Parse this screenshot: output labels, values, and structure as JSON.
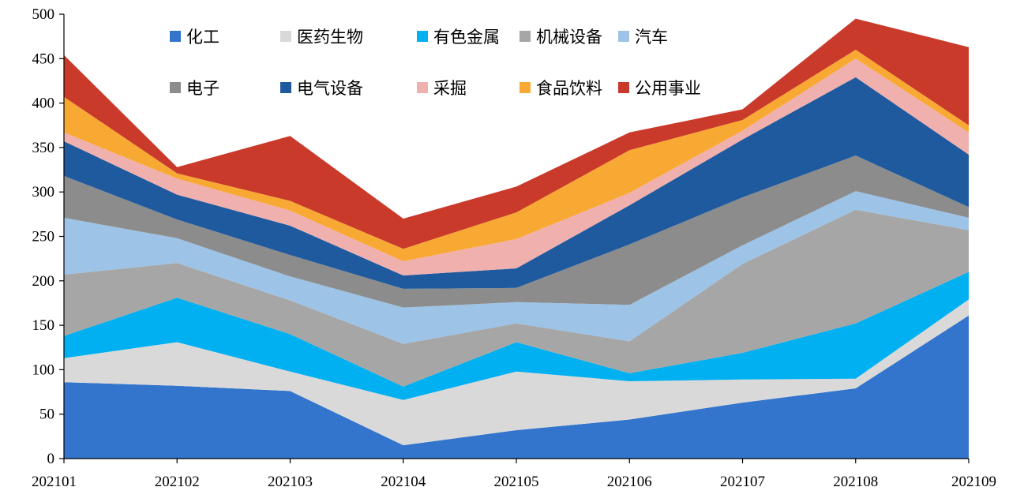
{
  "chart_data": {
    "type": "area",
    "stacked": true,
    "x": [
      "202101",
      "202102",
      "202103",
      "202104",
      "202105",
      "202106",
      "202107",
      "202108",
      "202109"
    ],
    "ylim": [
      0,
      500
    ],
    "yticks": [
      0,
      50,
      100,
      150,
      200,
      250,
      300,
      350,
      400,
      450,
      500
    ],
    "legend_position": "top",
    "series": [
      {
        "name": "化工",
        "color": "#3375cc",
        "values": [
          86,
          82,
          76,
          15,
          32,
          44,
          63,
          79,
          161
        ]
      },
      {
        "name": "医药生物",
        "color": "#d9d9d9",
        "values": [
          27,
          49,
          22,
          51,
          66,
          43,
          26,
          11,
          18
        ]
      },
      {
        "name": "有色金属",
        "color": "#00b0f0",
        "values": [
          25,
          50,
          42,
          15,
          33,
          9,
          30,
          62,
          31
        ]
      },
      {
        "name": "机械设备",
        "color": "#a6a6a6",
        "values": [
          69,
          39,
          38,
          48,
          21,
          36,
          100,
          128,
          47
        ]
      },
      {
        "name": "汽车",
        "color": "#9dc3e6",
        "values": [
          64,
          28,
          27,
          41,
          24,
          41,
          21,
          21,
          14
        ]
      },
      {
        "name": "电子",
        "color": "#8c8c8c",
        "values": [
          47,
          21,
          24,
          21,
          16,
          68,
          54,
          40,
          12
        ]
      },
      {
        "name": "电气设备",
        "color": "#1f5a9e",
        "values": [
          39,
          28,
          33,
          15,
          22,
          44,
          65,
          88,
          59
        ]
      },
      {
        "name": "采掘",
        "color": "#f0b0ae",
        "values": [
          10,
          18,
          17,
          16,
          33,
          14,
          10,
          21,
          25
        ]
      },
      {
        "name": "食品饮料",
        "color": "#f8a933",
        "values": [
          40,
          6,
          11,
          14,
          30,
          48,
          12,
          10,
          8
        ]
      },
      {
        "name": "公用事业",
        "color": "#c93a2b",
        "values": [
          47,
          7,
          73,
          34,
          29,
          20,
          12,
          35,
          88
        ]
      }
    ]
  }
}
